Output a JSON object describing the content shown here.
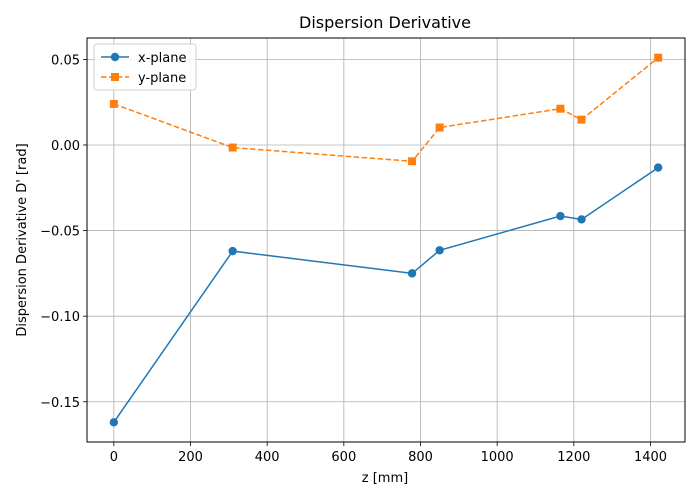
{
  "chart_data": {
    "type": "line",
    "title": "Dispersion Derivative",
    "xlabel": "z [mm]",
    "ylabel": "Dispersion Derivative D' [rad]",
    "xlim": [
      -70,
      1490
    ],
    "ylim": [
      -0.1735,
      0.0625
    ],
    "xticks": [
      0,
      200,
      400,
      600,
      800,
      1000,
      1200,
      1400
    ],
    "yticks": [
      -0.15,
      -0.1,
      -0.05,
      0.0,
      0.05
    ],
    "ytick_labels": [
      "−0.15",
      "−0.10",
      "−0.05",
      "0.00",
      "0.05"
    ],
    "grid": true,
    "legend_position": "top-left",
    "series": [
      {
        "name": "x-plane",
        "color": "#1f77b4",
        "marker": "circle",
        "linestyle": "solid",
        "x": [
          0,
          310,
          778,
          850,
          1165,
          1220,
          1420
        ],
        "y": [
          -0.162,
          -0.062,
          -0.075,
          -0.0615,
          -0.0415,
          -0.0435,
          -0.0132
        ]
      },
      {
        "name": "y-plane",
        "color": "#ff7f0e",
        "marker": "square",
        "linestyle": "dashed",
        "x": [
          0,
          310,
          778,
          850,
          1165,
          1220,
          1420
        ],
        "y": [
          0.024,
          -0.0015,
          -0.0095,
          0.0102,
          0.0212,
          0.0148,
          0.051
        ]
      }
    ]
  }
}
